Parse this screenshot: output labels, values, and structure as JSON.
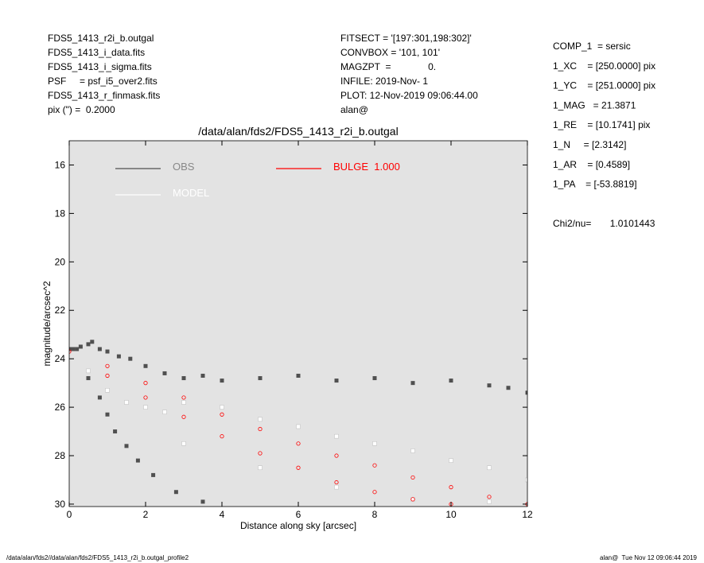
{
  "header": {
    "left": [
      "FDS5_1413_r2i_b.outgal",
      "FDS5_1413_i_data.fits",
      "FDS5_1413_i_sigma.fits",
      "PSF     = psf_i5_over2.fits",
      "FDS5_1413_r_finmask.fits",
      "pix (\") =  0.2000"
    ],
    "middle": [
      "FITSECT = '[197:301,198:302]'",
      "CONVBOX = '101, 101'",
      "MAGZPT  =              0.",
      "INFILE: 2019-Nov- 1",
      "PLOT: 12-Nov-2019 09:06:44.00",
      "alan@"
    ],
    "right": [
      "COMP_1  = sersic",
      "1_XC    = [250.0000] pix",
      "1_YC    = [251.0000] pix",
      "1_MAG   = 21.3871",
      "1_RE    = [10.1741] pix",
      "1_N     = [2.3142]",
      "1_AR    = [0.4589]",
      "1_PA    = [-53.8819]"
    ],
    "chi2": "Chi2/nu=       1.0101443"
  },
  "footer": {
    "left": "/data/alan/fds2//data/alan/fds2/FDS5_1413_r2i_b.outgal_profile2",
    "right": "alan@  Tue Nov 12 09:06:44 2019"
  },
  "chart_data": {
    "type": "scatter",
    "title": "/data/alan/fds2/FDS5_1413_r2i_b.outgal",
    "x_label": "Distance along sky [arcsec]",
    "y_label": "magnitude/arcsec^2",
    "xlim": [
      0,
      12
    ],
    "ylim": [
      15,
      30.1
    ],
    "invert_y": true,
    "xticks": [
      0,
      2,
      4,
      6,
      8,
      10,
      12
    ],
    "yticks": [
      16,
      18,
      20,
      22,
      24,
      26,
      28,
      30
    ],
    "background": "#e3e3e3",
    "series": [
      {
        "name": "OBS",
        "color": "#505050",
        "marker": "square",
        "x": [
          0,
          0.1,
          0.2,
          0.3,
          0.5,
          0.6,
          0.8,
          1.0,
          1.3,
          1.6,
          2,
          2.5,
          3,
          3.5,
          4,
          5,
          6,
          7,
          8,
          9,
          10,
          11,
          11.5,
          12,
          0.5,
          0.8,
          1.0,
          1.2,
          1.5,
          1.8,
          2.2,
          2.8,
          3.5
        ],
        "y": [
          23.6,
          23.6,
          23.6,
          23.5,
          23.4,
          23.3,
          23.6,
          23.7,
          23.9,
          24.0,
          24.3,
          24.6,
          24.8,
          24.7,
          24.9,
          24.8,
          24.7,
          24.9,
          24.8,
          25.0,
          24.9,
          25.1,
          25.2,
          25.4,
          24.8,
          25.6,
          26.3,
          27.0,
          27.6,
          28.2,
          28.8,
          29.5,
          29.9
        ]
      },
      {
        "name": "MODEL",
        "color": "#ffffff",
        "marker": "square",
        "x": [
          0.5,
          1,
          1.5,
          2,
          2.5,
          3,
          4,
          5,
          6,
          7,
          8,
          9,
          10,
          11,
          12,
          3,
          5,
          7,
          9,
          11
        ],
        "y": [
          24.5,
          25.3,
          25.8,
          26.0,
          26.2,
          25.8,
          26.0,
          26.5,
          26.8,
          27.2,
          27.5,
          27.8,
          28.2,
          28.5,
          29.0,
          27.5,
          28.5,
          29.3,
          29.8,
          29.9
        ]
      },
      {
        "name": "BULGE  1.000",
        "color": "#ff0000",
        "marker": "circle",
        "x": [
          0,
          1,
          2,
          3,
          4,
          5,
          6,
          7,
          8,
          9,
          10,
          11,
          12,
          1,
          2,
          3,
          4,
          5,
          6,
          7,
          8,
          9,
          10
        ],
        "y": [
          23.7,
          24.3,
          25.0,
          25.6,
          26.3,
          26.9,
          27.5,
          28.0,
          28.4,
          28.9,
          29.3,
          29.7,
          30.0,
          24.7,
          25.6,
          26.4,
          27.2,
          27.9,
          28.5,
          29.1,
          29.5,
          29.8,
          30.0
        ]
      }
    ]
  }
}
